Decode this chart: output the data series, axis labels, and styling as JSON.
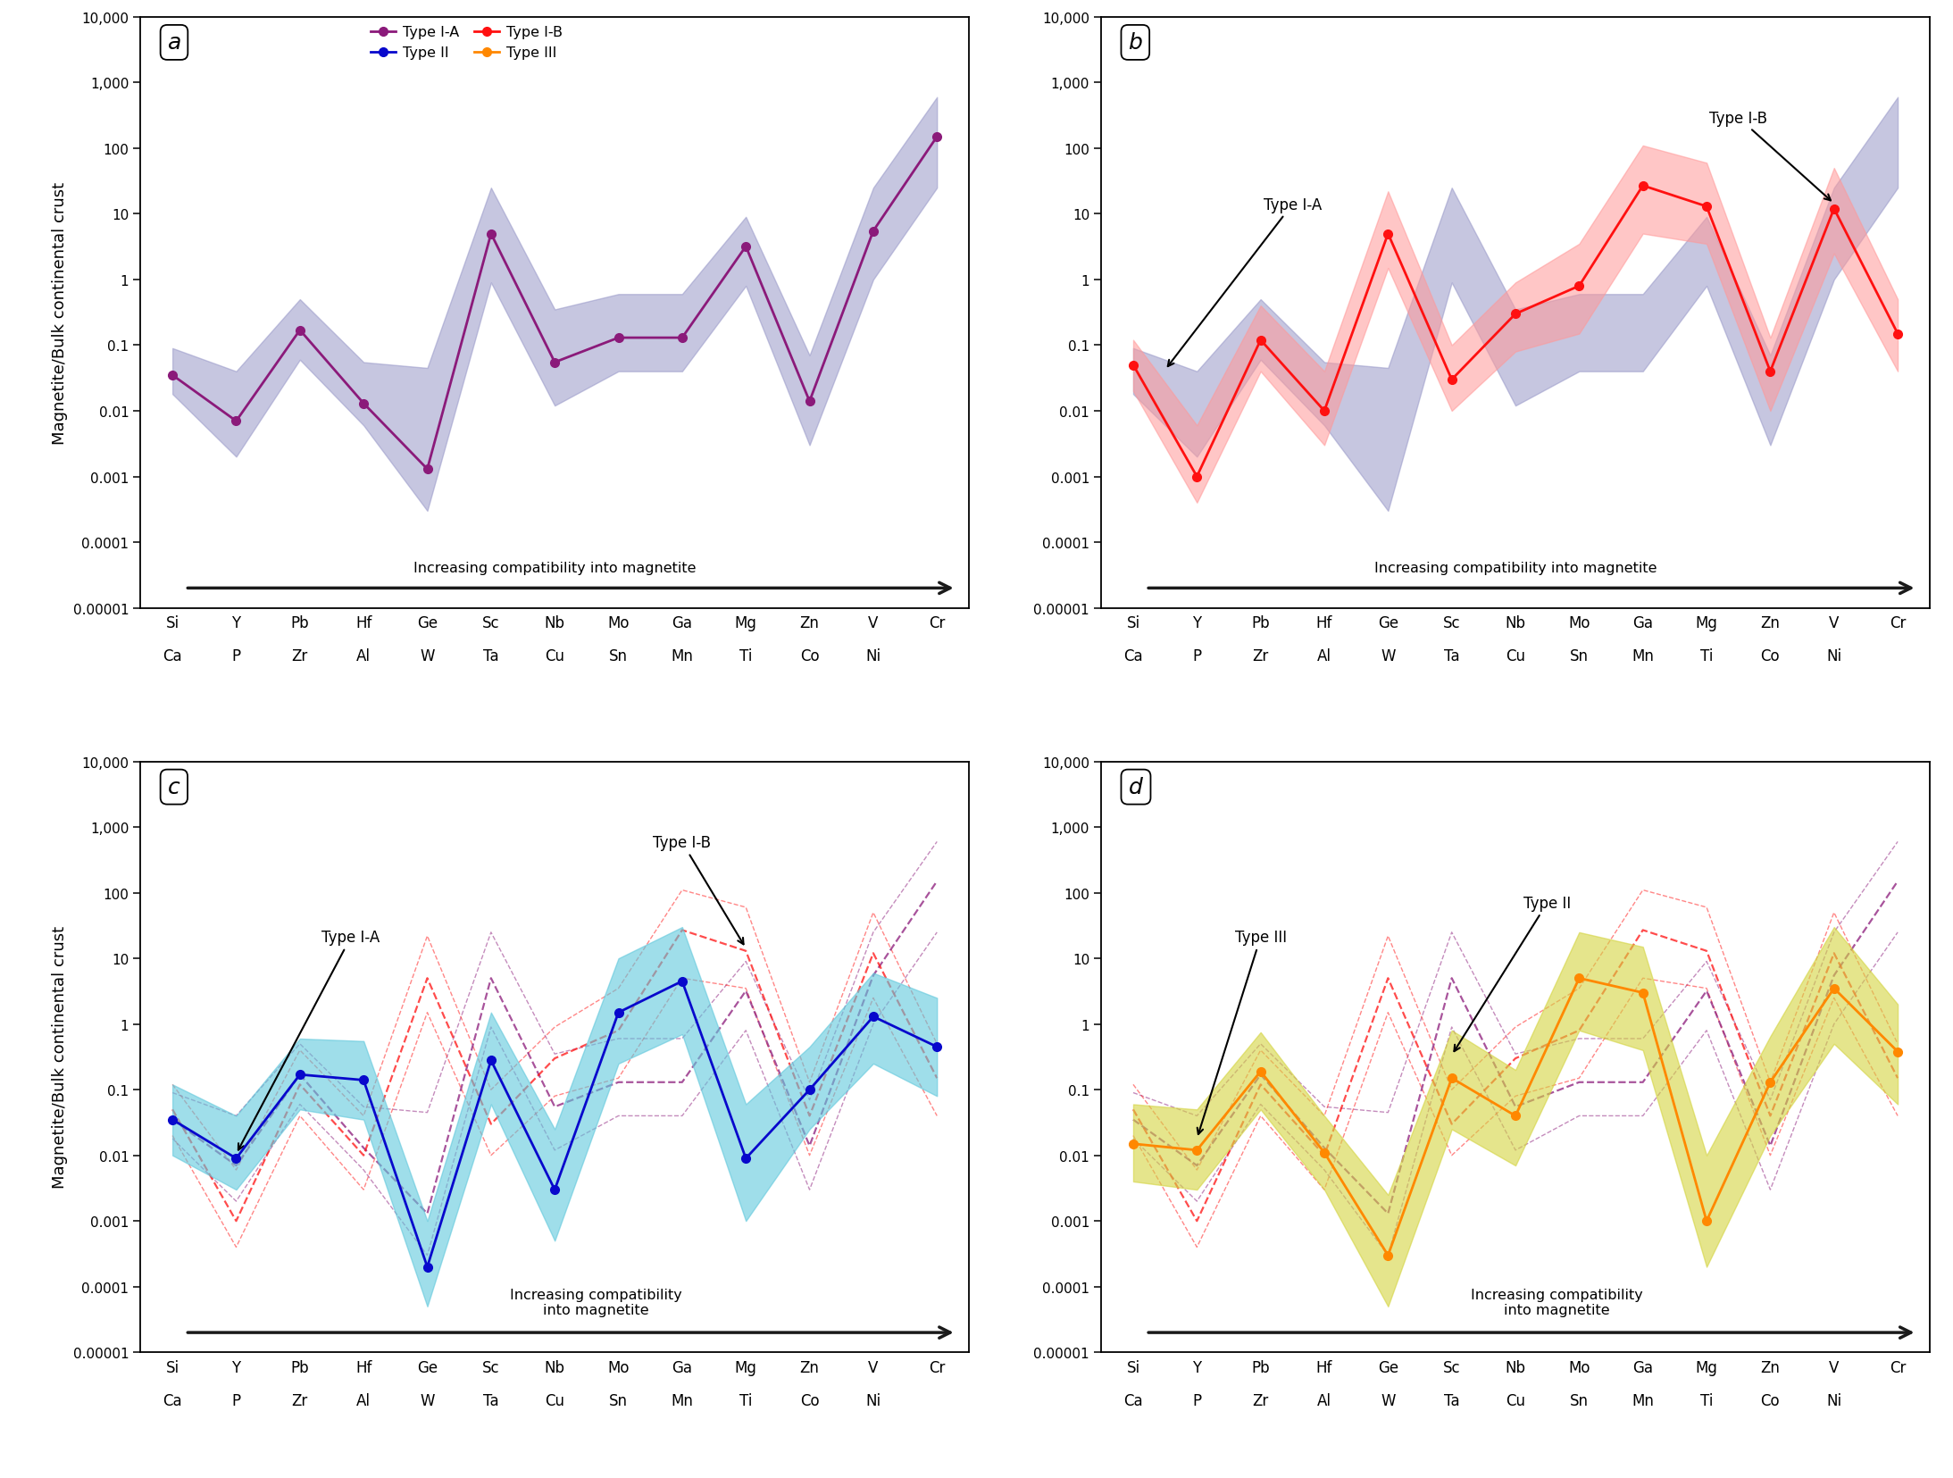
{
  "x_labels_top": [
    "Si",
    "Y",
    "Pb",
    "Hf",
    "Ge",
    "Sc",
    "Nb",
    "Mo",
    "Ga",
    "Mg",
    "Zn",
    "V",
    "Cr"
  ],
  "x_labels_bottom": [
    "Ca",
    "P",
    "Zr",
    "Al",
    "W",
    "Ta",
    "Cu",
    "Sn",
    "Mn",
    "Ti",
    "Co",
    "Ni",
    ""
  ],
  "ylabel": "Magnetite/Bulk continental crust",
  "colors": {
    "typeIA": "#8B1A7A",
    "typeIB": "#FF1010",
    "typeII": "#0808CC",
    "typeIII": "#FF8800",
    "shadeIA": "#9898C8",
    "shadeIB": "#FF9898",
    "shadeII": "#60C8DC",
    "shadeIII": "#D4D440"
  },
  "typeIA_mean": [
    0.035,
    0.007,
    0.17,
    0.013,
    0.0013,
    5.0,
    0.055,
    0.13,
    0.13,
    3.2,
    0.014,
    5.5,
    150.0
  ],
  "typeIA_low": [
    0.018,
    0.002,
    0.06,
    0.006,
    0.0003,
    0.9,
    0.012,
    0.04,
    0.04,
    0.8,
    0.003,
    1.0,
    25.0
  ],
  "typeIA_high": [
    0.09,
    0.04,
    0.5,
    0.055,
    0.045,
    25.0,
    0.35,
    0.6,
    0.6,
    9.0,
    0.07,
    25.0,
    600.0
  ],
  "typeIB_mean": [
    0.05,
    0.001,
    0.12,
    0.01,
    5.0,
    0.03,
    0.3,
    0.8,
    27.0,
    13.0,
    0.04,
    12.0,
    0.15
  ],
  "typeIB_low": [
    0.02,
    0.0004,
    0.04,
    0.003,
    1.5,
    0.01,
    0.08,
    0.15,
    5.0,
    3.5,
    0.01,
    2.5,
    0.04
  ],
  "typeIB_high": [
    0.12,
    0.006,
    0.4,
    0.04,
    22.0,
    0.1,
    0.9,
    3.5,
    110.0,
    60.0,
    0.13,
    50.0,
    0.5
  ],
  "typeII_mean": [
    0.035,
    0.009,
    0.17,
    0.14,
    0.0002,
    0.28,
    0.003,
    1.5,
    4.5,
    0.009,
    0.1,
    1.3,
    0.45
  ],
  "typeII_low": [
    0.01,
    0.003,
    0.05,
    0.035,
    5e-05,
    0.06,
    0.0005,
    0.25,
    0.7,
    0.001,
    0.025,
    0.25,
    0.08
  ],
  "typeII_high": [
    0.12,
    0.04,
    0.6,
    0.55,
    0.001,
    1.5,
    0.025,
    10.0,
    30.0,
    0.06,
    0.45,
    6.0,
    2.5
  ],
  "typeIII_mean": [
    0.015,
    0.012,
    0.19,
    0.011,
    0.0003,
    0.15,
    0.04,
    5.0,
    3.0,
    0.001,
    0.13,
    3.5,
    0.38
  ],
  "typeIII_low": [
    0.004,
    0.003,
    0.05,
    0.003,
    5e-05,
    0.025,
    0.007,
    0.8,
    0.4,
    0.0002,
    0.02,
    0.5,
    0.06
  ],
  "typeIII_high": [
    0.06,
    0.05,
    0.75,
    0.04,
    0.0025,
    0.8,
    0.2,
    25.0,
    15.0,
    0.01,
    0.65,
    30.0,
    2.0
  ],
  "yticks": [
    1e-05,
    0.0001,
    0.001,
    0.01,
    0.1,
    1,
    10,
    100,
    1000,
    10000
  ],
  "ytick_labels": [
    "0.00001",
    "0.0001",
    "0.001",
    "0.01",
    "0.1",
    "1",
    "10",
    "100",
    "1,000",
    "10,000"
  ]
}
